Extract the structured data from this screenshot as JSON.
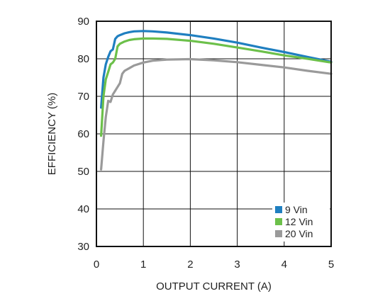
{
  "chart_data": {
    "type": "line",
    "title": "",
    "xlabel": "OUTPUT CURRENT (A)",
    "ylabel": "EFFICIENCY (%)",
    "xlim": [
      0,
      5
    ],
    "ylim": [
      30,
      90
    ],
    "xticks": [
      "0",
      "1",
      "2",
      "3",
      "4",
      "5"
    ],
    "yticks": [
      "30",
      "40",
      "50",
      "60",
      "70",
      "80",
      "90"
    ],
    "grid": true,
    "legend_position": "bottom-right",
    "series": [
      {
        "name": "9 Vin",
        "color": "#1f7fc0",
        "x": [
          0.1,
          0.15,
          0.2,
          0.25,
          0.3,
          0.35,
          0.4,
          0.45,
          0.5,
          0.6,
          0.7,
          0.8,
          1.0,
          1.2,
          1.5,
          2.0,
          2.5,
          3.0,
          3.5,
          4.0,
          4.5,
          5.0
        ],
        "y": [
          67.0,
          75.0,
          78.5,
          80.5,
          82.0,
          82.5,
          85.3,
          86.0,
          86.3,
          86.8,
          87.1,
          87.3,
          87.4,
          87.3,
          87.0,
          86.3,
          85.4,
          84.3,
          83.0,
          81.8,
          80.5,
          79.2
        ]
      },
      {
        "name": "12 Vin",
        "color": "#6cc04a",
        "x": [
          0.1,
          0.15,
          0.2,
          0.25,
          0.3,
          0.35,
          0.4,
          0.45,
          0.5,
          0.6,
          0.7,
          0.8,
          1.0,
          1.2,
          1.5,
          2.0,
          2.5,
          3.0,
          3.5,
          4.0,
          4.5,
          5.0
        ],
        "y": [
          59.5,
          70.0,
          74.5,
          76.5,
          78.5,
          79.0,
          80.0,
          83.3,
          84.0,
          84.6,
          85.0,
          85.2,
          85.4,
          85.4,
          85.3,
          84.8,
          84.0,
          83.0,
          82.0,
          80.9,
          80.0,
          79.0
        ]
      },
      {
        "name": "20 Vin",
        "color": "#9a9a9a",
        "x": [
          0.1,
          0.15,
          0.2,
          0.25,
          0.3,
          0.35,
          0.4,
          0.45,
          0.5,
          0.55,
          0.6,
          0.7,
          0.8,
          1.0,
          1.2,
          1.5,
          2.0,
          2.5,
          3.0,
          3.5,
          4.0,
          4.5,
          5.0
        ],
        "y": [
          50.5,
          58.0,
          64.5,
          68.8,
          68.5,
          70.5,
          71.5,
          72.5,
          73.5,
          76.0,
          76.8,
          77.5,
          78.2,
          79.0,
          79.5,
          79.8,
          79.9,
          79.6,
          79.1,
          78.4,
          77.7,
          76.8,
          76.0
        ]
      }
    ]
  }
}
